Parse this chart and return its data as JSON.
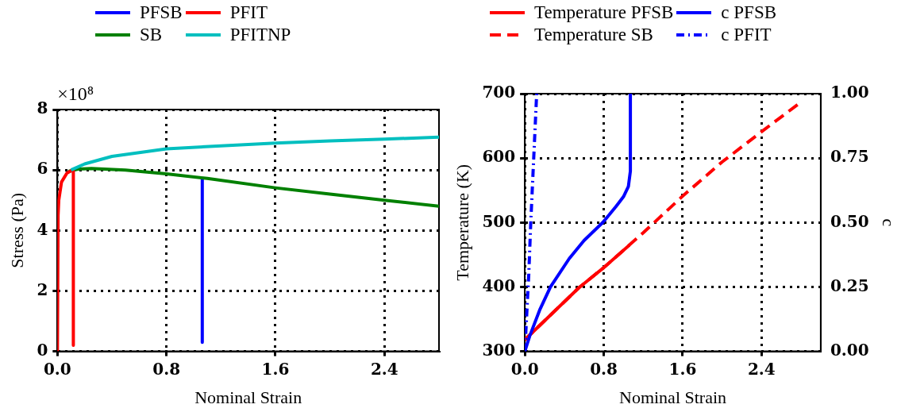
{
  "chart_data": [
    {
      "type": "line",
      "xlabel": "Nominal Strain",
      "ylabel": "Stress (Pa)",
      "annotations": [
        "×10⁸"
      ],
      "xlim": [
        0,
        2.8
      ],
      "xticks": [
        {
          "value": 0,
          "label": "0.0"
        },
        0.8,
        1.6,
        2.4
      ],
      "ylim": [
        0,
        8
      ],
      "yticks": [
        0,
        2,
        4,
        6,
        8
      ],
      "grid": true,
      "legend": "top",
      "marker": "none",
      "series": [
        {
          "name": "PFSB",
          "color": "#0000ff",
          "x": [
            1.063,
            1.063
          ],
          "values": [
            5.72,
            0.3
          ]
        },
        {
          "name": "SB",
          "color": "#008000",
          "x": [
            0.08,
            0.15,
            0.25,
            0.5,
            0.8,
            1.1,
            1.6,
            2.0,
            2.4,
            2.8
          ],
          "values": [
            5.95,
            6.03,
            6.05,
            6.0,
            5.87,
            5.72,
            5.41,
            5.2,
            5.0,
            4.8
          ]
        },
        {
          "name": "PFIT",
          "color": "#ff0000",
          "x": [
            0,
            0.005,
            0.01,
            0.03,
            0.07,
            0.11,
            0.117,
            0.117
          ],
          "values": [
            0,
            4.5,
            5.0,
            5.6,
            5.9,
            6.0,
            6.0,
            0.2
          ]
        },
        {
          "name": "PFITNP",
          "color": "#00bfbf",
          "x": [
            0.1,
            0.2,
            0.4,
            0.8,
            1.2,
            1.6,
            2.0,
            2.4,
            2.8
          ],
          "values": [
            6.0,
            6.2,
            6.45,
            6.7,
            6.8,
            6.89,
            6.96,
            7.02,
            7.09
          ]
        }
      ]
    },
    {
      "type": "line",
      "xlabel": "Nominal Strain",
      "ylabel": "Temperature (K)",
      "y2label": "c",
      "xlim": [
        0,
        3
      ],
      "xticks": [
        {
          "value": 0,
          "label": "0.0"
        },
        0.8,
        1.6,
        2.4
      ],
      "ylim": [
        300,
        700
      ],
      "yticks": [
        300,
        400,
        500,
        600,
        700
      ],
      "y2lim": [
        0,
        1
      ],
      "y2ticks": [
        {
          "value": 0,
          "label": "0.00"
        },
        {
          "value": 0.25,
          "label": "0.25"
        },
        {
          "value": 0.5,
          "label": "0.50"
        },
        {
          "value": 0.75,
          "label": "0.75"
        },
        {
          "value": 1,
          "label": "1.00"
        }
      ],
      "grid": true,
      "legend": "top",
      "marker": "none",
      "series": [
        {
          "name": "Temperature PFSB",
          "color": "#ff0000",
          "line_style": "solid",
          "x": [
            0,
            0.55,
            0.8,
            1.06
          ],
          "values": [
            318,
            399,
            430,
            465
          ]
        },
        {
          "name": "Temperature SB",
          "color": "#ff0000",
          "line_style": "dashed",
          "x": [
            0,
            0.55,
            0.8,
            1.2,
            1.6,
            2.0,
            2.4,
            2.8
          ],
          "values": [
            318,
            399,
            430,
            484,
            541,
            594,
            641,
            687
          ]
        },
        {
          "name": "c PFSB",
          "color": "#0000ff",
          "line_style": "solid",
          "axis": "y2",
          "x": [
            0,
            0.05,
            0.15,
            0.26,
            0.45,
            0.6,
            0.79,
            0.92,
            1.0,
            1.05,
            1.07,
            1.07
          ],
          "values": [
            0,
            0.06,
            0.16,
            0.25,
            0.36,
            0.43,
            0.5,
            0.56,
            0.6,
            0.64,
            0.7,
            1.0
          ]
        },
        {
          "name": "c PFIT",
          "color": "#0000ff",
          "line_style": "dashdot",
          "axis": "y2",
          "x": [
            0,
            0.02,
            0.04,
            0.06,
            0.09,
            0.12
          ],
          "values": [
            0,
            0.15,
            0.3,
            0.5,
            0.75,
            1.0
          ]
        }
      ]
    }
  ]
}
